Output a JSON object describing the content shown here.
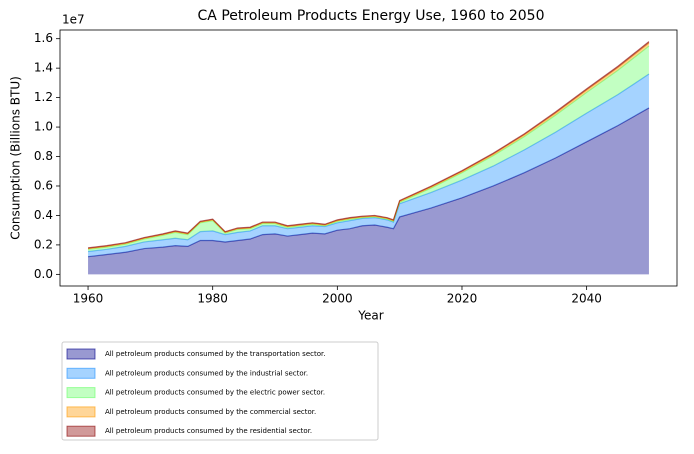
{
  "chart_data": {
    "type": "stacked_area",
    "title": "CA Petroleum Products Energy Use, 1960 to 2050",
    "x_label": "Year",
    "y_label": "Consumption (Billions BTU)",
    "y_offset_label": "1e7",
    "x": [
      1960,
      1963,
      1966,
      1969,
      1972,
      1974,
      1976,
      1978,
      1980,
      1982,
      1984,
      1986,
      1988,
      1990,
      1992,
      1994,
      1996,
      1998,
      2000,
      2002,
      2004,
      2006,
      2008,
      2009,
      2010,
      2015,
      2020,
      2025,
      2030,
      2035,
      2040,
      2045,
      2050
    ],
    "series": [
      {
        "name": "All petroleum products consumed by the transportation sector.",
        "color": "#00008b",
        "values": [
          1200000,
          1350000,
          1500000,
          1750000,
          1850000,
          1950000,
          1900000,
          2300000,
          2300000,
          2200000,
          2300000,
          2400000,
          2700000,
          2750000,
          2600000,
          2700000,
          2800000,
          2750000,
          3000000,
          3100000,
          3300000,
          3350000,
          3200000,
          3100000,
          3900000,
          4500000,
          5200000,
          6000000,
          6900000,
          7900000,
          9000000,
          10100000,
          11300000
        ]
      },
      {
        "name": "All petroleum products consumed by the industrial sector.",
        "color": "#1e90ff",
        "values": [
          350000,
          350000,
          400000,
          450000,
          500000,
          500000,
          450000,
          600000,
          650000,
          500000,
          550000,
          550000,
          600000,
          550000,
          500000,
          500000,
          500000,
          500000,
          500000,
          550000,
          500000,
          500000,
          500000,
          450000,
          900000,
          1050000,
          1200000,
          1350000,
          1550000,
          1750000,
          1950000,
          2100000,
          2300000
        ]
      },
      {
        "name": "All petroleum products consumed by the electric power sector.",
        "color": "#66ff66",
        "values": [
          150000,
          150000,
          150000,
          200000,
          300000,
          400000,
          350000,
          600000,
          700000,
          100000,
          200000,
          150000,
          150000,
          150000,
          100000,
          100000,
          100000,
          50000,
          100000,
          100000,
          50000,
          50000,
          50000,
          50000,
          100000,
          300000,
          500000,
          700000,
          900000,
          1150000,
          1400000,
          1650000,
          1900000
        ]
      },
      {
        "name": "All petroleum products consumed by the commercial sector.",
        "color": "#ff9900",
        "values": [
          50000,
          50000,
          50000,
          50000,
          50000,
          50000,
          50000,
          50000,
          50000,
          50000,
          50000,
          50000,
          50000,
          50000,
          50000,
          50000,
          50000,
          50000,
          50000,
          50000,
          50000,
          50000,
          50000,
          50000,
          60000,
          70000,
          80000,
          100000,
          120000,
          140000,
          160000,
          180000,
          200000
        ]
      },
      {
        "name": "All petroleum products consumed by the residential sector.",
        "color": "#8b0000",
        "values": [
          50000,
          50000,
          50000,
          50000,
          50000,
          50000,
          50000,
          50000,
          50000,
          50000,
          50000,
          50000,
          50000,
          50000,
          50000,
          50000,
          50000,
          50000,
          50000,
          50000,
          50000,
          50000,
          50000,
          50000,
          50000,
          60000,
          60000,
          70000,
          70000,
          80000,
          80000,
          90000,
          100000
        ]
      }
    ],
    "xlim": [
      1955.5,
      2054.5
    ],
    "xticks": [
      1960,
      1980,
      2000,
      2020,
      2040
    ],
    "ylim": [
      -790000,
      16590000
    ],
    "yticks": [
      {
        "value": 0,
        "label": "0.0"
      },
      {
        "value": 2000000,
        "label": "0.2"
      },
      {
        "value": 4000000,
        "label": "0.4"
      },
      {
        "value": 6000000,
        "label": "0.6"
      },
      {
        "value": 8000000,
        "label": "0.8"
      },
      {
        "value": 10000000,
        "label": "1.0"
      },
      {
        "value": 12000000,
        "label": "1.2"
      },
      {
        "value": 14000000,
        "label": "1.4"
      },
      {
        "value": 16000000,
        "label": "1.6"
      }
    ],
    "legend": "below"
  }
}
